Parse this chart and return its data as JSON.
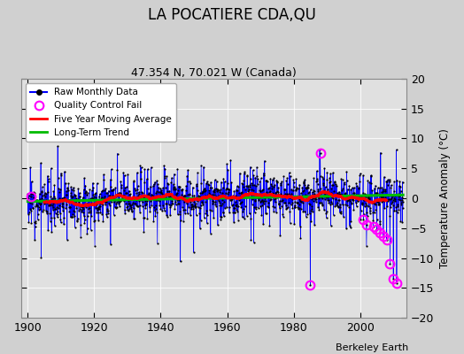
{
  "title": "LA POCATIERE CDA,QU",
  "subtitle": "47.354 N, 70.021 W (Canada)",
  "ylabel": "Temperature Anomaly (°C)",
  "credit": "Berkeley Earth",
  "xlim": [
    1898,
    2014
  ],
  "ylim": [
    -20,
    20
  ],
  "yticks": [
    -20,
    -15,
    -10,
    -5,
    0,
    5,
    10,
    15,
    20
  ],
  "xticks": [
    1900,
    1920,
    1940,
    1960,
    1980,
    2000
  ],
  "bg_color": "#d0d0d0",
  "plot_bg_color": "#e0e0e0",
  "raw_line_color": "#0000ff",
  "raw_marker_color": "#000000",
  "qc_fail_color": "#ff00ff",
  "moving_avg_color": "#ff0000",
  "trend_color": "#00bb00",
  "seed": 12,
  "start_year": 1900,
  "end_year": 2012,
  "noise_std": 2.0,
  "qc_years": [
    1901,
    1985,
    1988,
    2001,
    2002,
    2004,
    2005,
    2006,
    2007,
    2008,
    2009,
    2010,
    2011
  ],
  "qc_vals": [
    0.3,
    -14.5,
    7.5,
    -3.5,
    -4.5,
    -4.8,
    -5.2,
    -5.8,
    -6.3,
    -7.0,
    -11.0,
    -13.5,
    -14.2
  ]
}
